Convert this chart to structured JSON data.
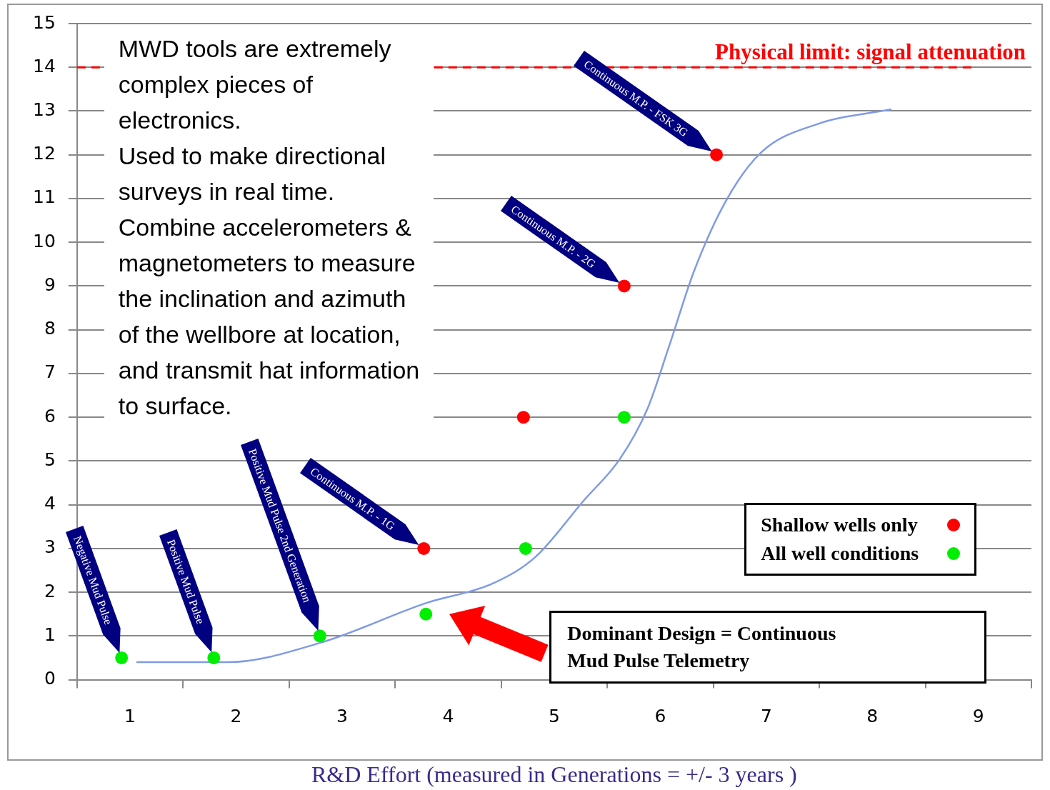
{
  "chart_data": {
    "type": "scatter",
    "xlabel": "R&D Effort (measured in Generations = +/- 3 years )",
    "xlim": [
      0.5,
      9.5
    ],
    "xticks": [
      {
        "value": 0.5,
        "label": null
      },
      1,
      {
        "value": 1.5,
        "label": null
      },
      2,
      {
        "value": 2.5,
        "label": null
      },
      3,
      {
        "value": 3.5,
        "label": null
      },
      4,
      {
        "value": 4.5,
        "label": null
      },
      5,
      {
        "value": 5.5,
        "label": null
      },
      6,
      {
        "value": 6.5,
        "label": null
      },
      7,
      {
        "value": 7.5,
        "label": null
      },
      8,
      {
        "value": 8.5,
        "label": null
      },
      9,
      {
        "value": 9.5,
        "label": null
      }
    ],
    "ylim": [
      0,
      15
    ],
    "yticks": [
      0,
      1,
      2,
      3,
      4,
      5,
      6,
      7,
      8,
      9,
      10,
      11,
      12,
      13,
      14,
      15
    ],
    "grid": "y",
    "legend": "right",
    "marker": "circle",
    "series": [
      {
        "name": "Shallow wells only",
        "color": "#ff0000",
        "type": "scatter",
        "x": [
          3.77,
          4.71,
          5.66,
          6.53
        ],
        "values": [
          3,
          6,
          9,
          12
        ]
      },
      {
        "name": "All well conditions",
        "color": "#00ee00",
        "type": "scatter",
        "x": [
          0.92,
          1.79,
          2.79,
          3.79,
          4.73,
          5.66
        ],
        "values": [
          0.5,
          0.5,
          1,
          1.5,
          3,
          6
        ]
      },
      {
        "color": "#7f9be6",
        "type": "line",
        "marker": "none",
        "x": [
          1.06,
          1.92,
          2.79,
          3.79,
          4.42,
          4.82,
          5.28,
          5.62,
          5.88,
          6.08,
          6.32,
          6.62,
          6.95,
          7.48,
          8.18
        ],
        "values": [
          0.4,
          0.4,
          0.84,
          1.75,
          2.2,
          2.8,
          4.1,
          5.05,
          6.2,
          7.6,
          9.35,
          10.95,
          12.05,
          12.7,
          13.04
        ]
      }
    ],
    "ref_lines": [
      {
        "axis": "y",
        "value": 14,
        "label": "Physical limit: signal attenuation",
        "color": "#ff0000",
        "line_style": "dashed"
      }
    ],
    "annotations": [
      "MWD tools are extremely\ncomplex pieces of\nelectronics.\nUsed to make directional\nsurveys in real time.\nCombine accelerometers &\nmagnetometers to measure\nthe inclination and azimuth\nof the wellbore at location,\nand transmit hat information\nto surface.",
      "Dominant Design = Continuous\nMud Pulse Telemetry",
      {
        "text": "Negative Mud Pulse",
        "x": 0.92,
        "y": 0.5
      },
      {
        "text": "Positive Mud Pulse",
        "x": 1.79,
        "y": 0.5
      },
      {
        "text": "Positive Mud Pulse 2nd Generation",
        "x": 2.79,
        "y": 1
      },
      {
        "text": "Continuous M.P. - 1G",
        "x": 3.77,
        "y": 3
      },
      {
        "text": "Continuous M.P. - 2G",
        "x": 5.66,
        "y": 9
      },
      {
        "text": "Continuous M.P. - FSK 3G",
        "x": 6.53,
        "y": 12
      }
    ]
  }
}
